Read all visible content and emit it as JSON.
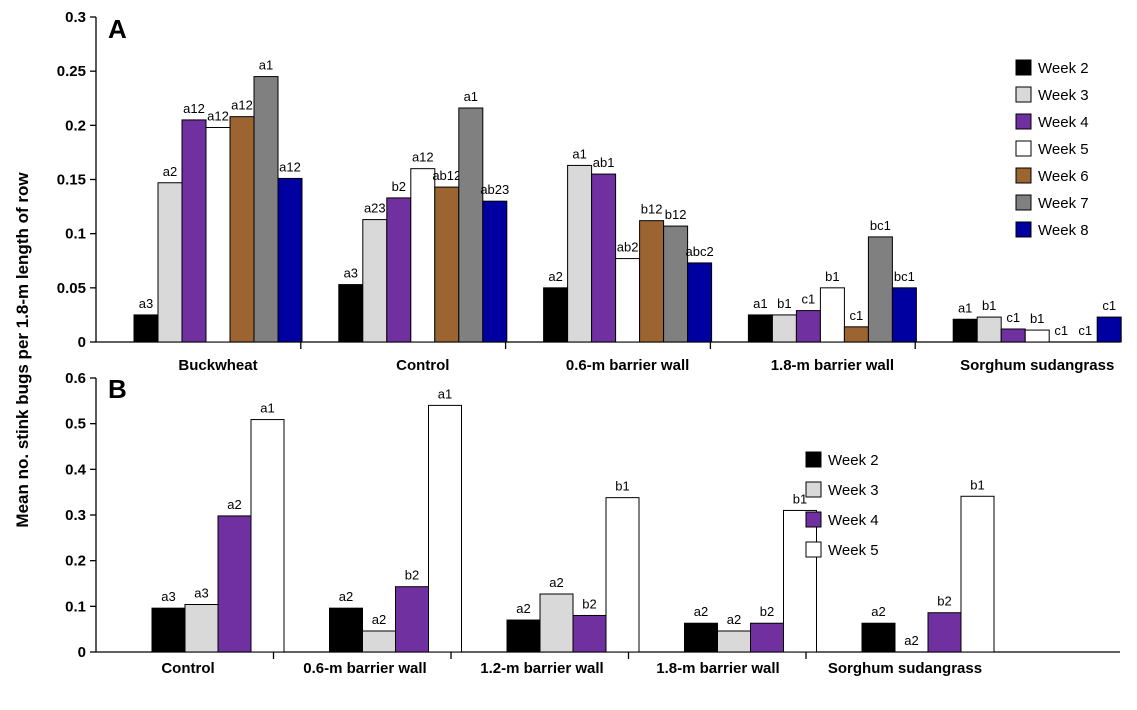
{
  "ylabel": "Mean no. stink bugs per 1.8-m length of row",
  "chart_data": [
    {
      "type": "bar",
      "panel_label": "A",
      "ylim": [
        0,
        0.3
      ],
      "yticks": [
        "0",
        "0.05",
        "0.1",
        "0.15",
        "0.2",
        "0.25",
        "0.3"
      ],
      "categories": [
        "Buckwheat",
        "Control",
        "0.6-m barrier wall",
        "1.8-m barrier wall",
        "Sorghum sudangrass"
      ],
      "legend_position": "right",
      "series": [
        {
          "name": "Week 2",
          "color": "#000000",
          "values": [
            0.025,
            0.053,
            0.05,
            0.025,
            0.021
          ],
          "labels": [
            "a3",
            "a3",
            "a2",
            "a1",
            "a1"
          ]
        },
        {
          "name": "Week 3",
          "color": "#d9d9d9",
          "values": [
            0.147,
            0.113,
            0.163,
            0.025,
            0.023
          ],
          "labels": [
            "a2",
            "a23",
            "a1",
            "b1",
            "b1"
          ]
        },
        {
          "name": "Week 4",
          "color": "#7030a0",
          "values": [
            0.205,
            0.133,
            0.155,
            0.029,
            0.012
          ],
          "labels": [
            "a12",
            "b2",
            "ab1",
            "c1",
            "c1"
          ]
        },
        {
          "name": "Week 5",
          "color": "#ffffff",
          "values": [
            0.198,
            0.16,
            0.077,
            0.05,
            0.011
          ],
          "labels": [
            "a12",
            "a12",
            "ab2",
            "b1",
            "b1"
          ]
        },
        {
          "name": "Week 6",
          "color": "#9c6430",
          "values": [
            0.208,
            0.143,
            0.112,
            0.014,
            0.0
          ],
          "labels": [
            "a12",
            "ab12",
            "b12",
            "c1",
            "c1"
          ]
        },
        {
          "name": "Week 7",
          "color": "#808080",
          "values": [
            0.245,
            0.216,
            0.107,
            0.097,
            0.0
          ],
          "labels": [
            "a1",
            "a1",
            "b12",
            "bc1",
            "c1"
          ]
        },
        {
          "name": "Week 8",
          "color": "#0000a0",
          "values": [
            0.151,
            0.13,
            0.073,
            0.05,
            0.023
          ],
          "labels": [
            "a12",
            "ab23",
            "abc2",
            "bc1",
            "c1"
          ]
        }
      ]
    },
    {
      "type": "bar",
      "panel_label": "B",
      "ylim": [
        0,
        0.6
      ],
      "yticks": [
        "0",
        "0.1",
        "0.2",
        "0.3",
        "0.4",
        "0.5",
        "0.6"
      ],
      "categories": [
        "Control",
        "0.6-m barrier wall",
        "1.2-m barrier wall",
        "1.8-m barrier wall",
        "Sorghum sudangrass"
      ],
      "legend_position": "right",
      "series": [
        {
          "name": "Week 2",
          "color": "#000000",
          "values": [
            0.096,
            0.096,
            0.07,
            0.063,
            0.063
          ],
          "labels": [
            "a3",
            "a2",
            "a2",
            "a2",
            "a2"
          ]
        },
        {
          "name": "Week 3",
          "color": "#d9d9d9",
          "values": [
            0.104,
            0.046,
            0.127,
            0.046,
            0.0
          ],
          "labels": [
            "a3",
            "a2",
            "a2",
            "a2",
            "a2"
          ]
        },
        {
          "name": "Week 4",
          "color": "#7030a0",
          "values": [
            0.298,
            0.143,
            0.08,
            0.063,
            0.086
          ],
          "labels": [
            "a2",
            "b2",
            "b2",
            "b2",
            "b2"
          ]
        },
        {
          "name": "Week 5",
          "color": "#ffffff",
          "values": [
            0.509,
            0.54,
            0.338,
            0.31,
            0.341
          ],
          "labels": [
            "a1",
            "a1",
            "b1",
            "b1",
            "b1"
          ]
        }
      ]
    }
  ]
}
